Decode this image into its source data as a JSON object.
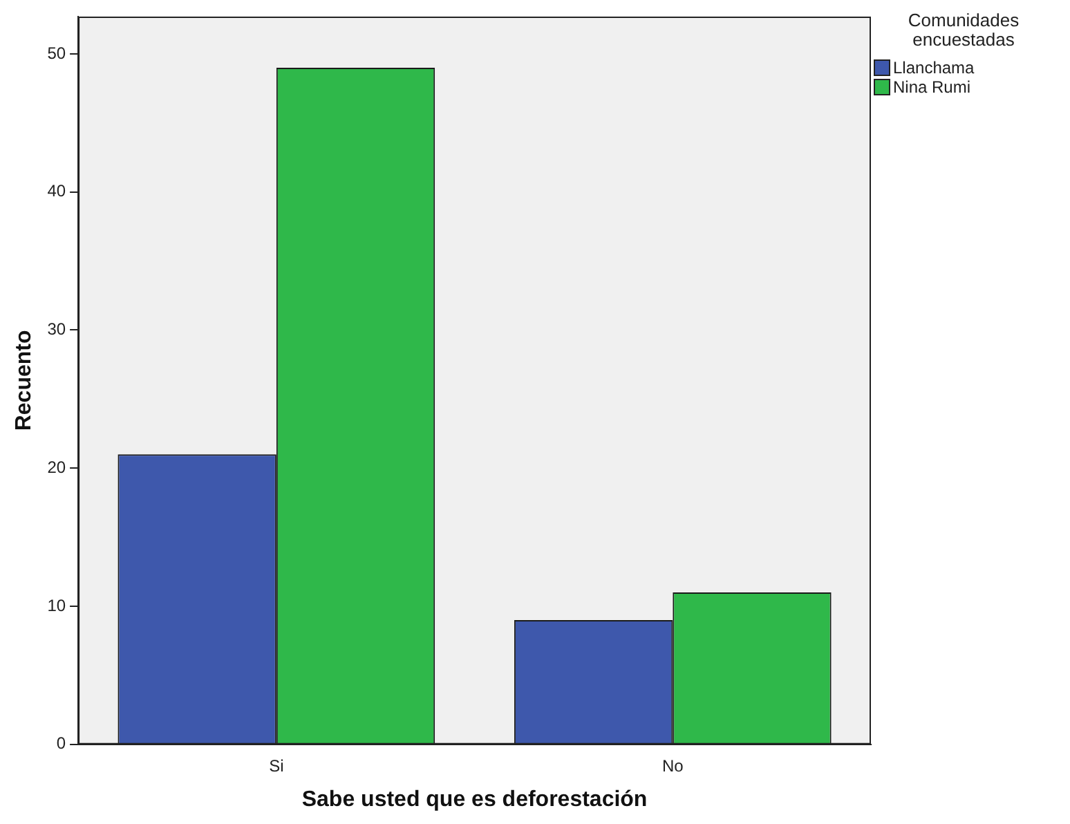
{
  "chart_data": {
    "type": "bar",
    "xlabel": "Sabe usted que es deforestación",
    "ylabel": "Recuento",
    "legend_title": "Comunidades encuestadas",
    "categories": [
      "Si",
      "No"
    ],
    "series": [
      {
        "name": "Llanchama",
        "color": "#3e58ac",
        "values": [
          21,
          9
        ]
      },
      {
        "name": "Nina Rumi",
        "color": "#2fb84a",
        "values": [
          49,
          11
        ]
      }
    ],
    "ylim": [
      0,
      52.7
    ],
    "yticks": [
      0,
      10,
      20,
      30,
      40,
      50
    ],
    "grid": false,
    "legend": "top right"
  }
}
